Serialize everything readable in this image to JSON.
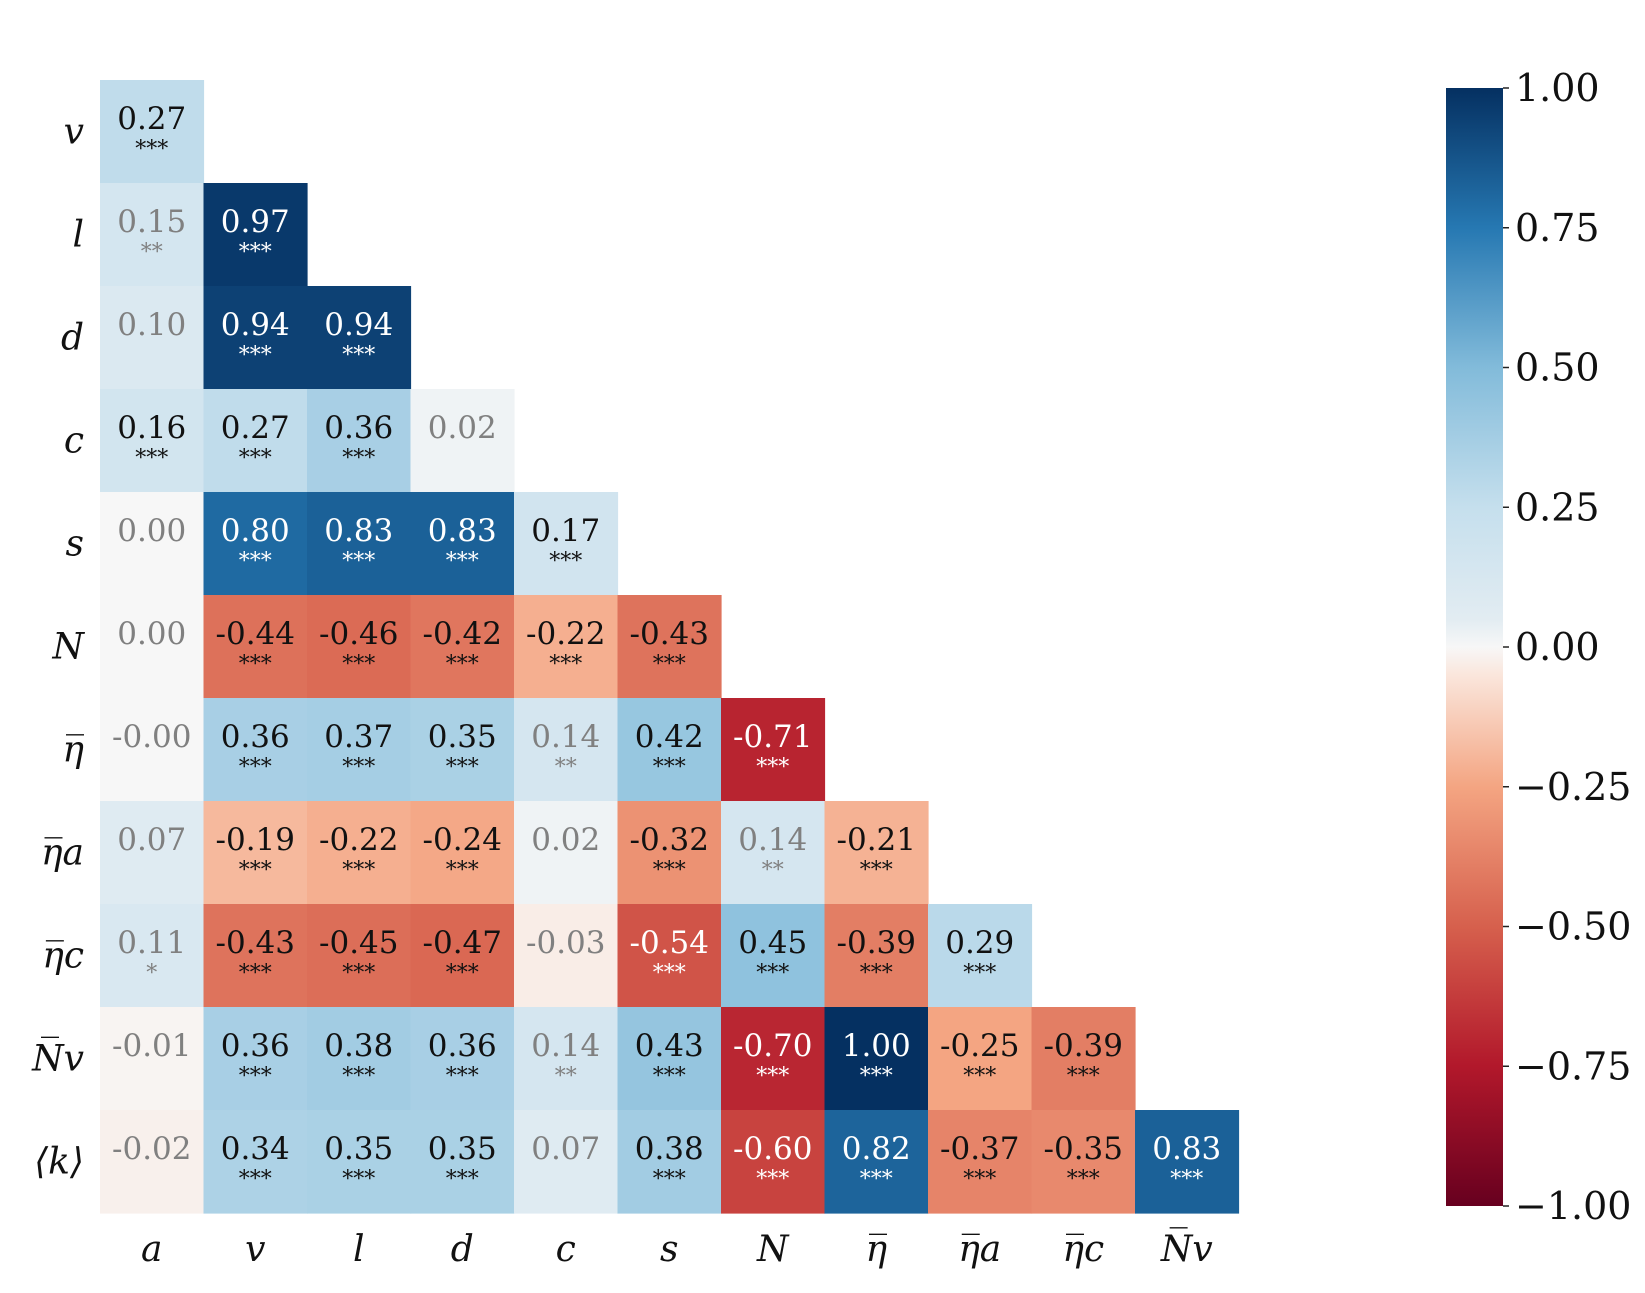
{
  "chart_data": {
    "type": "heatmap",
    "title": "",
    "xlabel": "",
    "ylabel": "",
    "col_labels": [
      "a",
      "v",
      "l",
      "d",
      "c",
      "s",
      "N",
      "η̅",
      "η̅a",
      "η̅c",
      "N̅v"
    ],
    "row_labels": [
      "v",
      "l",
      "d",
      "c",
      "s",
      "N",
      "η̅",
      "η̅a",
      "η̅c",
      "N̅v",
      "⟨k⟩"
    ],
    "values": [
      [
        0.27
      ],
      [
        0.15,
        0.97
      ],
      [
        0.1,
        0.94,
        0.94
      ],
      [
        0.16,
        0.27,
        0.36,
        0.02
      ],
      [
        0.0,
        0.8,
        0.83,
        0.83,
        0.17
      ],
      [
        0.0,
        -0.44,
        -0.46,
        -0.42,
        -0.22,
        -0.43
      ],
      [
        -0.0,
        0.36,
        0.37,
        0.35,
        0.14,
        0.42,
        -0.71
      ],
      [
        0.07,
        -0.19,
        -0.22,
        -0.24,
        0.02,
        -0.32,
        0.14,
        -0.21
      ],
      [
        0.11,
        -0.43,
        -0.45,
        -0.47,
        -0.03,
        -0.54,
        0.45,
        -0.39,
        0.29
      ],
      [
        -0.01,
        0.36,
        0.38,
        0.36,
        0.14,
        0.43,
        -0.7,
        1.0,
        -0.25,
        -0.39
      ],
      [
        -0.02,
        0.34,
        0.35,
        0.35,
        0.07,
        0.38,
        -0.6,
        0.82,
        -0.37,
        -0.35,
        0.83
      ]
    ],
    "cell_text": [
      [
        "0.27"
      ],
      [
        "0.15",
        "0.97"
      ],
      [
        "0.10",
        "0.94",
        "0.94"
      ],
      [
        "0.16",
        "0.27",
        "0.36",
        "0.02"
      ],
      [
        "0.00",
        "0.80",
        "0.83",
        "0.83",
        "0.17"
      ],
      [
        "0.00",
        "-0.44",
        "-0.46",
        "-0.42",
        "-0.22",
        "-0.43"
      ],
      [
        "-0.00",
        "0.36",
        "0.37",
        "0.35",
        "0.14",
        "0.42",
        "-0.71"
      ],
      [
        "0.07",
        "-0.19",
        "-0.22",
        "-0.24",
        "0.02",
        "-0.32",
        "0.14",
        "-0.21"
      ],
      [
        "0.11",
        "-0.43",
        "-0.45",
        "-0.47",
        "-0.03",
        "-0.54",
        "0.45",
        "-0.39",
        "0.29"
      ],
      [
        "-0.01",
        "0.36",
        "0.38",
        "0.36",
        "0.14",
        "0.43",
        "-0.70",
        "1.00",
        "-0.25",
        "-0.39"
      ],
      [
        "-0.02",
        "0.34",
        "0.35",
        "0.35",
        "0.07",
        "0.38",
        "-0.60",
        "0.82",
        "-0.37",
        "-0.35",
        "0.83"
      ]
    ],
    "significance": [
      [
        "***"
      ],
      [
        "**",
        "***"
      ],
      [
        "",
        "***",
        "***"
      ],
      [
        "***",
        "***",
        "***",
        ""
      ],
      [
        "",
        "***",
        "***",
        "***",
        "***"
      ],
      [
        "",
        "***",
        "***",
        "***",
        "***",
        "***"
      ],
      [
        "",
        "***",
        "***",
        "***",
        "**",
        "***",
        "***"
      ],
      [
        "",
        "***",
        "***",
        "***",
        "",
        "***",
        "**",
        "***"
      ],
      [
        "*",
        "***",
        "***",
        "***",
        "",
        "***",
        "***",
        "***",
        "***"
      ],
      [
        "",
        "***",
        "***",
        "***",
        "**",
        "***",
        "***",
        "***",
        "***",
        "***"
      ],
      [
        "",
        "***",
        "***",
        "***",
        "",
        "***",
        "***",
        "***",
        "***",
        "***",
        "***"
      ]
    ],
    "colorbar": {
      "min": -1.0,
      "max": 1.0,
      "ticks": [
        "1.00",
        "0.75",
        "0.50",
        "0.25",
        "0.00",
        "−0.25",
        "−0.50",
        "−0.75",
        "−1.00"
      ],
      "tick_values": [
        1.0,
        0.75,
        0.5,
        0.25,
        0.0,
        -0.25,
        -0.5,
        -0.75,
        -1.0
      ],
      "colormap": "RdBu"
    },
    "colors": {
      "insignificant_text": "#808080",
      "dark_text": "#111111",
      "light_text": "#ffffff"
    }
  }
}
